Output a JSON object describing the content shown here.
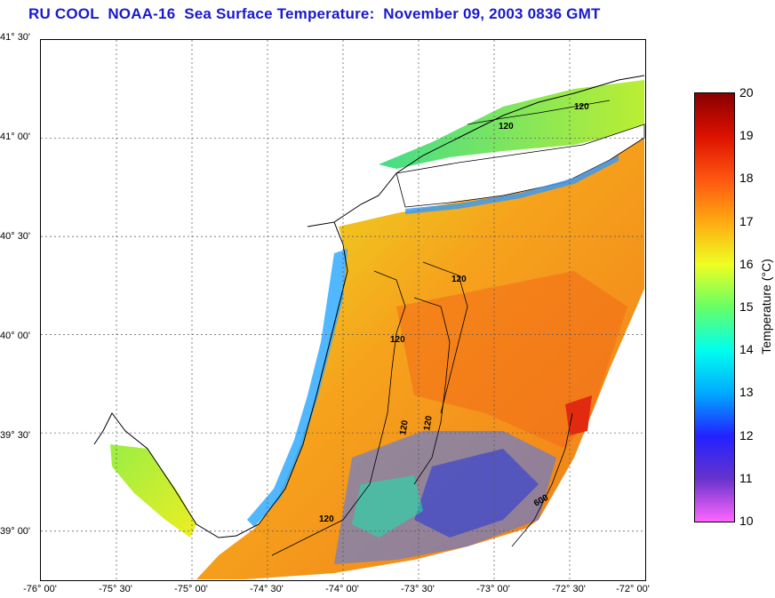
{
  "title": "RU COOL  NOAA-16  Sea Surface Temperature:  November 09, 2003 0836 GMT",
  "map": {
    "lat_labels": [
      "41° 30'",
      "41° 00'",
      "40° 30'",
      "40° 00'",
      "39° 30'",
      "39° 00'"
    ],
    "lat_values": [
      41.5,
      41.0,
      40.5,
      40.0,
      39.5,
      39.0
    ],
    "lon_labels": [
      "-76° 00'",
      "-75° 30'",
      "-75° 00'",
      "-74° 30'",
      "-74° 00'",
      "-73° 30'",
      "-73° 00'",
      "-72° 30'",
      "-72° 00'"
    ],
    "lon_values": [
      -76.0,
      -75.5,
      -75.0,
      -74.5,
      -74.0,
      -73.5,
      -73.0,
      -72.5,
      -72.0
    ],
    "lat_range": [
      38.75,
      41.5
    ],
    "lon_range": [
      -76.0,
      -72.0
    ],
    "contour_labels": [
      "120",
      "120",
      "120",
      "120",
      "120",
      "120",
      "120",
      "600"
    ],
    "grid": true
  },
  "colorbar": {
    "title": "Temperature (°C)",
    "ticks": [
      "20",
      "19",
      "18",
      "17",
      "16",
      "15",
      "14",
      "13",
      "12",
      "11",
      "10"
    ],
    "min": 10,
    "max": 20,
    "colors": [
      "#ff66ff",
      "#6633cc",
      "#2222ff",
      "#00aaff",
      "#00ffee",
      "#66ff66",
      "#eeff22",
      "#ffaa11",
      "#ff5511",
      "#dd1100",
      "#880000"
    ]
  }
}
